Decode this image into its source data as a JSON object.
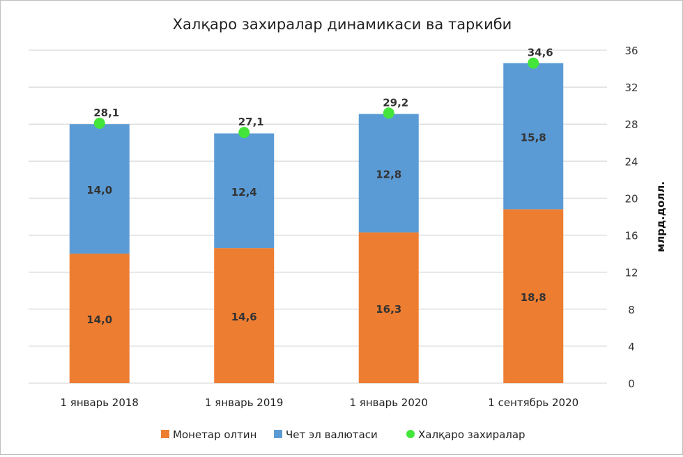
{
  "chart_data": {
    "type": "bar",
    "stacked": true,
    "title": "Халқаро захиралар динамикаси ва таркиби",
    "ylabel": "млрд.долл.",
    "xlabel": "",
    "ylim": [
      0,
      36
    ],
    "yticks": [
      0,
      4,
      8,
      12,
      16,
      20,
      24,
      28,
      32,
      36
    ],
    "y_axis_side": "right",
    "grid": true,
    "legend_position": "bottom",
    "categories": [
      "1 январь 2018",
      "1 январь 2019",
      "1 январь 2020",
      "1 сентябрь 2020"
    ],
    "series": [
      {
        "name": "Монетар олтин",
        "kind": "bar",
        "color": "#ed7d31",
        "values": [
          14.0,
          14.6,
          16.3,
          18.8
        ],
        "labels": [
          "14,0",
          "14,6",
          "16,3",
          "18,8"
        ]
      },
      {
        "name": "Чет эл валютаси",
        "kind": "bar",
        "color": "#5b9bd5",
        "values": [
          14.0,
          12.4,
          12.8,
          15.8
        ],
        "labels": [
          "14,0",
          "12,4",
          "12,8",
          "15,8"
        ]
      },
      {
        "name": "Халқаро захиралар",
        "kind": "point",
        "color": "#44e53a",
        "values": [
          28.1,
          27.1,
          29.2,
          34.6
        ],
        "labels": [
          "28,1",
          "27,1",
          "29,2",
          "34,6"
        ]
      }
    ]
  }
}
